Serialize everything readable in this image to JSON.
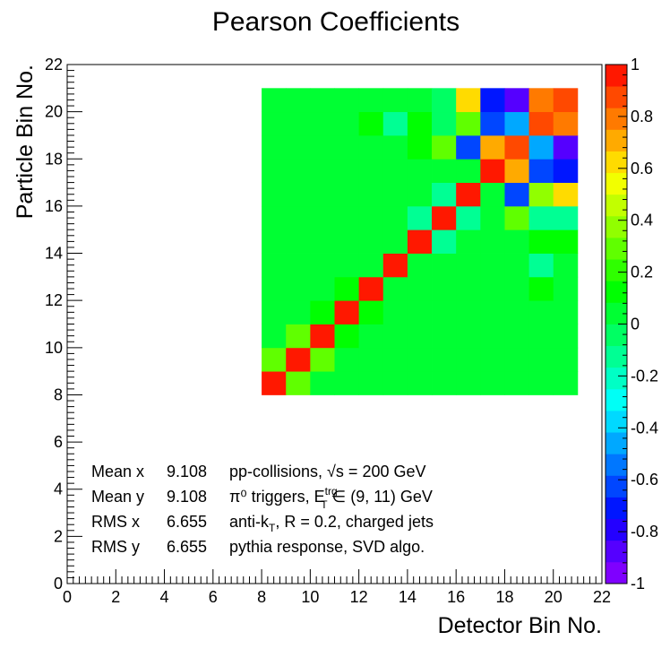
{
  "chart_data": {
    "type": "heatmap",
    "title": "Pearson Coefficients",
    "xlabel": "Detector Bin No.",
    "ylabel": "Particle Bin No.",
    "xlim": [
      0,
      22
    ],
    "ylim": [
      0,
      22
    ],
    "x_ticks": [
      "0",
      "2",
      "4",
      "6",
      "8",
      "10",
      "12",
      "14",
      "16",
      "18",
      "20",
      "22"
    ],
    "y_ticks": [
      "0",
      "2",
      "4",
      "6",
      "8",
      "10",
      "12",
      "14",
      "16",
      "18",
      "20",
      "22"
    ],
    "x_range": [
      8,
      21
    ],
    "y_range": [
      8,
      21
    ],
    "z_range": [
      -1,
      1
    ],
    "z_ticks": [
      "-1",
      "-0.8",
      "-0.6",
      "-0.4",
      "-0.2",
      "0",
      "0.2",
      "0.4",
      "0.6",
      "0.8",
      "1"
    ],
    "palette": [
      "#7f00ff",
      "#5500ff",
      "#2400ff",
      "#0016ff",
      "#0046ff",
      "#0077ff",
      "#00a8ff",
      "#00d9ff",
      "#00fff6",
      "#00ffc5",
      "#00ff94",
      "#00ff63",
      "#00ff33",
      "#00ff02",
      "#2fff00",
      "#60ff00",
      "#91ff00",
      "#c2ff00",
      "#f2ff00",
      "#ffdb00",
      "#ffaa00",
      "#ff7a00",
      "#ff4900",
      "#ff1800"
    ],
    "rows": [
      [
        1.0,
        0.3,
        0.05,
        0.05,
        0.0,
        0.0,
        0.0,
        0.0,
        0.0,
        0.0,
        0.0,
        0.0,
        0.0
      ],
      [
        0.3,
        1.0,
        0.3,
        0.05,
        0.05,
        0.0,
        0.0,
        0.0,
        0.0,
        0.0,
        0.05,
        0.0,
        0.0
      ],
      [
        0.05,
        0.3,
        1.0,
        0.15,
        0.05,
        0.05,
        0.0,
        0.0,
        0.0,
        0.0,
        0.0,
        0.05,
        0.0
      ],
      [
        0.05,
        0.05,
        0.15,
        1.0,
        0.1,
        0.05,
        0.0,
        0.0,
        0.0,
        0.0,
        0.0,
        0.05,
        0.05
      ],
      [
        0.05,
        0.05,
        0.05,
        0.1,
        1.0,
        0.05,
        0.05,
        0.0,
        0.0,
        0.05,
        0.05,
        0.15,
        0.05
      ],
      [
        0.0,
        0.05,
        0.05,
        0.05,
        0.05,
        1.0,
        0.05,
        0.05,
        0.0,
        0.0,
        0.0,
        -0.1,
        0.05
      ],
      [
        0.0,
        0.0,
        0.0,
        0.05,
        0.05,
        0.05,
        1.0,
        -0.1,
        0.05,
        0.0,
        0.05,
        0.15,
        0.1
      ],
      [
        0.0,
        0.0,
        0.0,
        0.05,
        0.0,
        0.05,
        -0.1,
        1.0,
        -0.1,
        0.05,
        0.3,
        -0.1,
        -0.1
      ],
      [
        0.0,
        0.0,
        0.0,
        0.0,
        0.0,
        0.05,
        0.05,
        -0.1,
        1.0,
        0.05,
        -0.65,
        0.35,
        0.6
      ],
      [
        0.0,
        0.0,
        0.0,
        0.0,
        0.0,
        0.0,
        0.0,
        0.0,
        0.05,
        0.95,
        0.7,
        -0.65,
        -0.75
      ],
      [
        0.05,
        0.05,
        0.0,
        0.0,
        0.05,
        0.0,
        0.1,
        0.25,
        -0.65,
        0.7,
        0.9,
        -0.5,
        -0.85
      ],
      [
        0.0,
        0.0,
        0.05,
        0.05,
        0.15,
        -0.1,
        0.15,
        -0.05,
        0.3,
        -0.65,
        -0.5,
        0.9,
        0.8
      ],
      [
        0.0,
        0.0,
        0.0,
        0.0,
        0.0,
        0.0,
        0.05,
        -0.05,
        0.6,
        -0.75,
        -0.85,
        0.8,
        0.9
      ]
    ]
  },
  "stats": [
    {
      "label": "Mean x",
      "value": "9.108",
      "note": "pp-collisions, √s = 200 GeV"
    },
    {
      "label": "Mean y",
      "value": "9.108",
      "note": "π⁰ triggers, E_T^trg ∈ (9, 11) GeV"
    },
    {
      "label": "RMS x",
      "value": "6.655",
      "note": "anti-k_T, R = 0.2, charged jets"
    },
    {
      "label": "RMS y",
      "value": "6.655",
      "note": "pythia response, SVD algo."
    }
  ]
}
